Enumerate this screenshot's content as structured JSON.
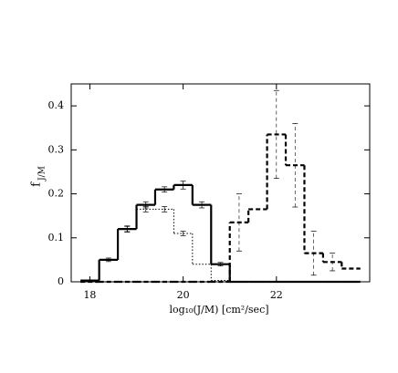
{
  "chart_data": {
    "type": "histogram",
    "x_label": "log₁₀(J/M)  [cm²/sec]",
    "y_label": {
      "main": "f",
      "sub": "J/M"
    },
    "bins": [
      17.8,
      18.2,
      18.6,
      19.0,
      19.4,
      19.8,
      20.2,
      20.6,
      21.0,
      21.4,
      21.8,
      22.2,
      22.6,
      23.0,
      23.4,
      23.8
    ],
    "series": [
      {
        "color": "#000000",
        "style": "solid",
        "width": 2.2,
        "values": [
          0.003,
          0.05,
          0.12,
          0.175,
          0.21,
          0.22,
          0.175,
          0.04,
          0,
          0,
          0,
          0,
          0,
          0,
          0
        ],
        "errors": [
          null,
          0.004,
          0.007,
          0.007,
          0.006,
          0.009,
          0.007,
          0.004,
          null,
          null,
          null,
          null,
          null,
          null,
          null
        ]
      },
      {
        "color": "#000000",
        "style": "dotted",
        "width": 1,
        "values": [
          0.003,
          0.05,
          0.12,
          0.165,
          0.165,
          0.11,
          0.04,
          0.003,
          0,
          0,
          0,
          0,
          0,
          0,
          0
        ],
        "errors": [
          null,
          null,
          0.006,
          0.006,
          0.006,
          0.005,
          null,
          null,
          null,
          null,
          null,
          null,
          null,
          null,
          null
        ]
      },
      {
        "color": "#000000",
        "style": "dashed",
        "width": 2.2,
        "values": [
          0,
          0,
          0,
          0,
          0,
          0,
          0,
          0,
          0.135,
          0.165,
          0.335,
          0.265,
          0.065,
          0.045,
          0.03
        ],
        "errors": [
          null,
          null,
          null,
          null,
          null,
          null,
          null,
          null,
          0.065,
          null,
          0.1,
          0.095,
          0.05,
          0.02,
          null
        ]
      }
    ],
    "xlim": [
      17.6,
      24.0
    ],
    "ylim": [
      0,
      0.45
    ],
    "xticks": [
      18,
      20,
      22
    ],
    "yticks": [
      0,
      0.1,
      0.2,
      0.3,
      0.4
    ]
  }
}
